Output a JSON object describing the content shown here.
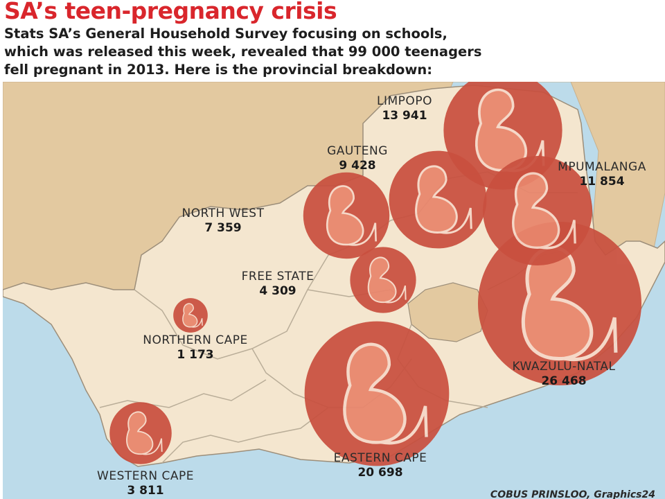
{
  "header": {
    "headline": "SA’s teen-pregnancy crisis",
    "intro_lines": [
      "Stats SA’s General Household Survey focusing on schools,",
      "which was released this week, revealed that 99 000 teenagers",
      "fell pregnant in 2013. Here is the provincial breakdown:"
    ]
  },
  "provinces": [
    {
      "name": "LIMPOPO",
      "value": 13941,
      "display": "13 941"
    },
    {
      "name": "GAUTENG",
      "value": 9428,
      "display": "9 428"
    },
    {
      "name": "MPUMALANGA",
      "value": 11854,
      "display": "11 854"
    },
    {
      "name": "NORTH WEST",
      "value": 7359,
      "display": "7 359"
    },
    {
      "name": "FREE STATE",
      "value": 4309,
      "display": "4 309"
    },
    {
      "name": "KWAZULU-NATAL",
      "value": 26468,
      "display": "26 468"
    },
    {
      "name": "NORTHERN CAPE",
      "value": 1173,
      "display": "1 173"
    },
    {
      "name": "EASTERN CAPE",
      "value": 20698,
      "display": "20 698"
    },
    {
      "name": "WESTERN CAPE",
      "value": 3811,
      "display": "3 811"
    }
  ],
  "credit": "COBUS PRINSLOO, Graphics24",
  "colors": {
    "headline": "#d9262c",
    "sea": "#bcdbea",
    "land_sa": "#f4e6cf",
    "land_neighbours": "#e3c9a0",
    "bubble_outer": "#c9503f",
    "bubble_inner": "#e9866c",
    "bubble_outline": "#f6d8c8"
  },
  "icons": [
    "foetus-icon"
  ]
}
